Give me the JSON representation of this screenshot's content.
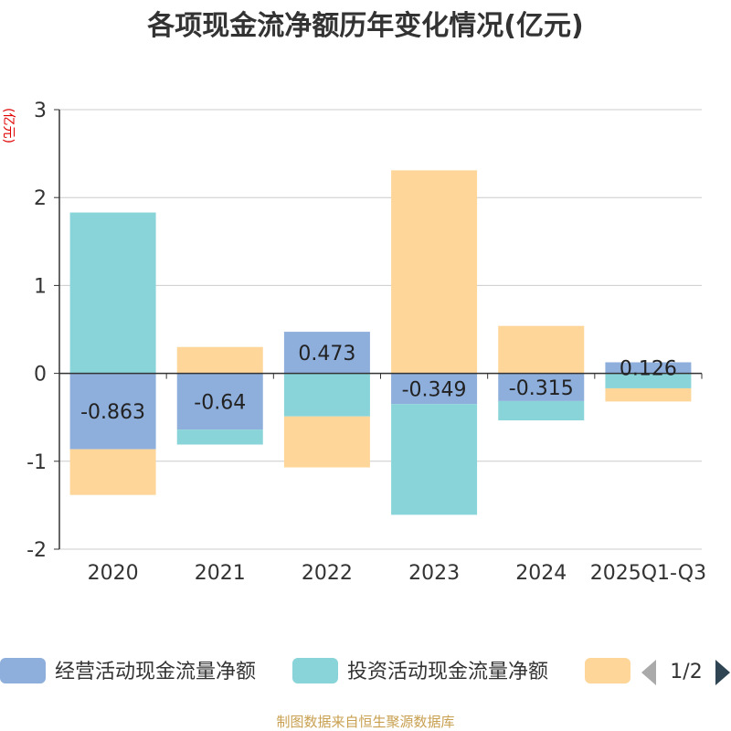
{
  "chart_data": {
    "type": "bar",
    "stacked": true,
    "title": "各项现金流净额历年变化情况(亿元)",
    "ylabel": "(亿元)",
    "ylim": [
      -2,
      3
    ],
    "yticks": [
      3,
      2,
      1,
      0,
      -1,
      -2
    ],
    "grid": true,
    "legend_position": "bottom",
    "categories": [
      "2020",
      "2021",
      "2022",
      "2023",
      "2024",
      "2025Q1-Q3"
    ],
    "series": [
      {
        "name": "经营活动现金流量净额",
        "color": "#8eaedc",
        "values": [
          -0.863,
          -0.64,
          0.473,
          -0.349,
          -0.315,
          0.126
        ],
        "labels": [
          "-0.863",
          "-0.64",
          "0.473",
          "-0.349",
          "-0.315",
          "0.126"
        ]
      },
      {
        "name": "投资活动现金流量净额",
        "color": "#88d4d8",
        "values": [
          1.83,
          -0.17,
          -0.49,
          -1.26,
          -0.22,
          -0.17
        ]
      },
      {
        "name": "",
        "color": "#fed69a",
        "values": [
          -0.52,
          0.3,
          -0.58,
          2.31,
          0.54,
          -0.15
        ]
      }
    ]
  },
  "legend": {
    "page_indicator": "1/2",
    "prev_color": "#aaaaaa",
    "next_color": "#2f4554"
  },
  "source": "制图数据来自恒生聚源数据库"
}
